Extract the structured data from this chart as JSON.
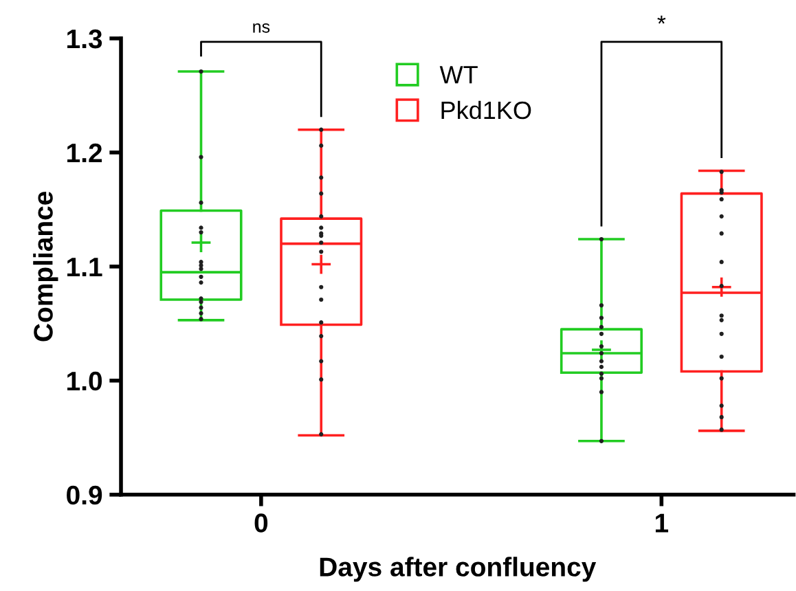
{
  "chart_data": {
    "type": "box",
    "xlabel": "Days after confluency",
    "ylabel": "Compliance",
    "categories": [
      "0",
      "1"
    ],
    "ylim": [
      0.9,
      1.3
    ],
    "yticks": [
      0.9,
      {
        "value": 1,
        "label": "1.0"
      },
      1.1,
      1.2,
      1.3
    ],
    "grid": false,
    "legend": "top",
    "annotations": [
      "ns",
      "*"
    ],
    "series": [
      {
        "name": "WT",
        "color": "#22cc22",
        "boxes": [
          {
            "low": 1.053,
            "q1": 1.071,
            "median": 1.095,
            "q3": 1.149,
            "high": 1.271,
            "mean": 1.121
          },
          {
            "low": 0.947,
            "q1": 1.007,
            "median": 1.024,
            "q3": 1.045,
            "high": 1.124,
            "mean": 1.027
          }
        ]
      },
      {
        "name": "Pkd1KO",
        "color": "#ff2020",
        "boxes": [
          {
            "low": 0.952,
            "q1": 1.049,
            "median": 1.12,
            "q3": 1.142,
            "high": 1.22,
            "mean": 1.102
          },
          {
            "low": 0.956,
            "q1": 1.008,
            "median": 1.077,
            "q3": 1.164,
            "high": 1.184,
            "mean": 1.082
          }
        ]
      },
      {
        "type": "scatter",
        "color": "#202020",
        "x": [
          "0",
          "0",
          "0",
          "0",
          "0",
          "0",
          "0",
          "0",
          "0",
          "0",
          "0",
          "0",
          "0",
          "0",
          "0",
          "1",
          "1",
          "1",
          "1",
          "1",
          "1",
          "1",
          "1",
          "1",
          "1",
          "1",
          "1",
          "1"
        ],
        "values": [
          1.271,
          1.196,
          1.156,
          1.134,
          1.13,
          1.104,
          1.101,
          1.098,
          1.091,
          1.086,
          1.072,
          1.069,
          1.064,
          1.059,
          1.054,
          1.124,
          1.066,
          1.055,
          1.047,
          1.041,
          1.03,
          1.024,
          1.017,
          1.012,
          1.006,
          1.002,
          0.99,
          0.947
        ]
      },
      {
        "type": "scatter",
        "color": "#202020",
        "x": [
          "0",
          "0",
          "0",
          "0",
          "0",
          "0",
          "0",
          "0",
          "0",
          "0",
          "0",
          "0",
          "0",
          "0",
          "0",
          "0",
          "0",
          "1",
          "1",
          "1",
          "1",
          "1",
          "1",
          "1",
          "1",
          "1",
          "1",
          "1",
          "1",
          "1",
          "1",
          "1",
          "1"
        ],
        "values": [
          1.22,
          1.206,
          1.178,
          1.164,
          1.144,
          1.134,
          1.129,
          1.127,
          1.121,
          1.113,
          1.082,
          1.071,
          1.051,
          1.039,
          1.017,
          1.001,
          0.953,
          1.183,
          1.167,
          1.165,
          1.159,
          1.144,
          1.129,
          1.104,
          1.083,
          1.057,
          1.053,
          1.041,
          1.021,
          1.002,
          0.978,
          0.968,
          0.957
        ]
      }
    ]
  }
}
